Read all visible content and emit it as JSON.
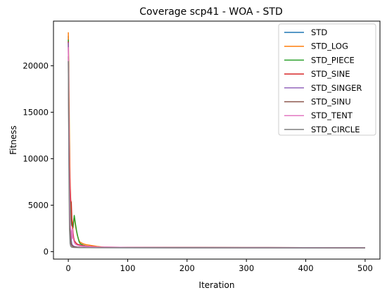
{
  "chart_data": {
    "type": "line",
    "title": "Coverage scp41 - WOA - STD",
    "xlabel": "Iteration",
    "ylabel": "Fitness",
    "xlim": [
      -25,
      525
    ],
    "ylim": [
      -800,
      24800
    ],
    "xticks": [
      0,
      100,
      200,
      300,
      400,
      500
    ],
    "xtick_labels": [
      "0",
      "100",
      "200",
      "300",
      "400",
      "500"
    ],
    "yticks": [
      0,
      5000,
      10000,
      15000,
      20000
    ],
    "ytick_labels": [
      "0",
      "5000",
      "10000",
      "15000",
      "20000"
    ],
    "grid": false,
    "legend_position": "top-right",
    "series": [
      {
        "name": "STD",
        "color": "#1f77b4",
        "x": [
          0,
          1,
          2,
          3,
          4,
          5,
          6,
          8,
          10,
          15,
          20,
          30,
          50,
          100,
          200,
          300,
          400,
          500
        ],
        "y": [
          23200,
          16000,
          9000,
          4200,
          2100,
          1200,
          800,
          600,
          520,
          470,
          450,
          440,
          430,
          425,
          420,
          418,
          416,
          415
        ]
      },
      {
        "name": "STD_LOG",
        "color": "#ff7f0e",
        "x": [
          0,
          1,
          2,
          3,
          4,
          5,
          6,
          8,
          10,
          12,
          15,
          18,
          20,
          25,
          30,
          40,
          50,
          60,
          100,
          200,
          300,
          400,
          500
        ],
        "y": [
          23600,
          18000,
          12000,
          7500,
          5000,
          3800,
          3200,
          3000,
          3800,
          2800,
          1800,
          1200,
          1000,
          850,
          750,
          650,
          550,
          480,
          450,
          440,
          435,
          430,
          425
        ]
      },
      {
        "name": "STD_PIECE",
        "color": "#2ca02c",
        "x": [
          0,
          1,
          2,
          3,
          4,
          5,
          6,
          8,
          10,
          12,
          14,
          16,
          18,
          20,
          25,
          30,
          40,
          50,
          100,
          200,
          300,
          400,
          500
        ],
        "y": [
          22800,
          15000,
          9000,
          5500,
          4000,
          3200,
          2800,
          2600,
          3900,
          3000,
          2200,
          1600,
          1100,
          850,
          700,
          600,
          520,
          480,
          455,
          445,
          440,
          435,
          430
        ]
      },
      {
        "name": "STD_SINE",
        "color": "#d62728",
        "x": [
          0,
          1,
          2,
          3,
          4,
          5,
          6,
          7,
          8,
          9,
          10,
          12,
          15,
          20,
          25,
          30,
          40,
          50,
          100,
          200,
          300,
          400,
          500
        ],
        "y": [
          22600,
          15000,
          9200,
          7000,
          5500,
          5300,
          3500,
          2800,
          2000,
          1500,
          1200,
          1000,
          800,
          700,
          650,
          600,
          550,
          500,
          460,
          445,
          440,
          435,
          430
        ]
      },
      {
        "name": "STD_SINGER",
        "color": "#9467bd",
        "x": [
          0,
          1,
          2,
          3,
          4,
          5,
          6,
          8,
          10,
          15,
          20,
          30,
          50,
          100,
          200,
          300,
          400,
          500
        ],
        "y": [
          22500,
          12000,
          5000,
          2500,
          1500,
          1000,
          800,
          650,
          560,
          500,
          470,
          450,
          440,
          430,
          425,
          420,
          418,
          415
        ]
      },
      {
        "name": "STD_SINU",
        "color": "#8c564b",
        "x": [
          0,
          1,
          2,
          3,
          4,
          5,
          6,
          8,
          10,
          15,
          20,
          30,
          50,
          100,
          200,
          300,
          400,
          500
        ],
        "y": [
          21000,
          11000,
          5000,
          2200,
          1200,
          800,
          650,
          560,
          520,
          480,
          460,
          450,
          440,
          432,
          425,
          420,
          418,
          416
        ]
      },
      {
        "name": "STD_TENT",
        "color": "#e377c2",
        "x": [
          0,
          1,
          2,
          3,
          4,
          5,
          6,
          7,
          8,
          10,
          12,
          15,
          20,
          30,
          50,
          100,
          200,
          300,
          400,
          500
        ],
        "y": [
          22000,
          14000,
          7000,
          4000,
          2500,
          2200,
          1400,
          2400,
          1500,
          1000,
          800,
          700,
          620,
          560,
          500,
          460,
          445,
          440,
          435,
          430
        ]
      },
      {
        "name": "STD_CIRCLE",
        "color": "#7f7f7f",
        "x": [
          0,
          1,
          2,
          3,
          4,
          5,
          6,
          8,
          10,
          15,
          20,
          30,
          50,
          100,
          200,
          300,
          400,
          500
        ],
        "y": [
          20500,
          9000,
          2500,
          900,
          600,
          520,
          480,
          460,
          450,
          440,
          435,
          430,
          425,
          420,
          418,
          416,
          414,
          412
        ]
      }
    ]
  }
}
